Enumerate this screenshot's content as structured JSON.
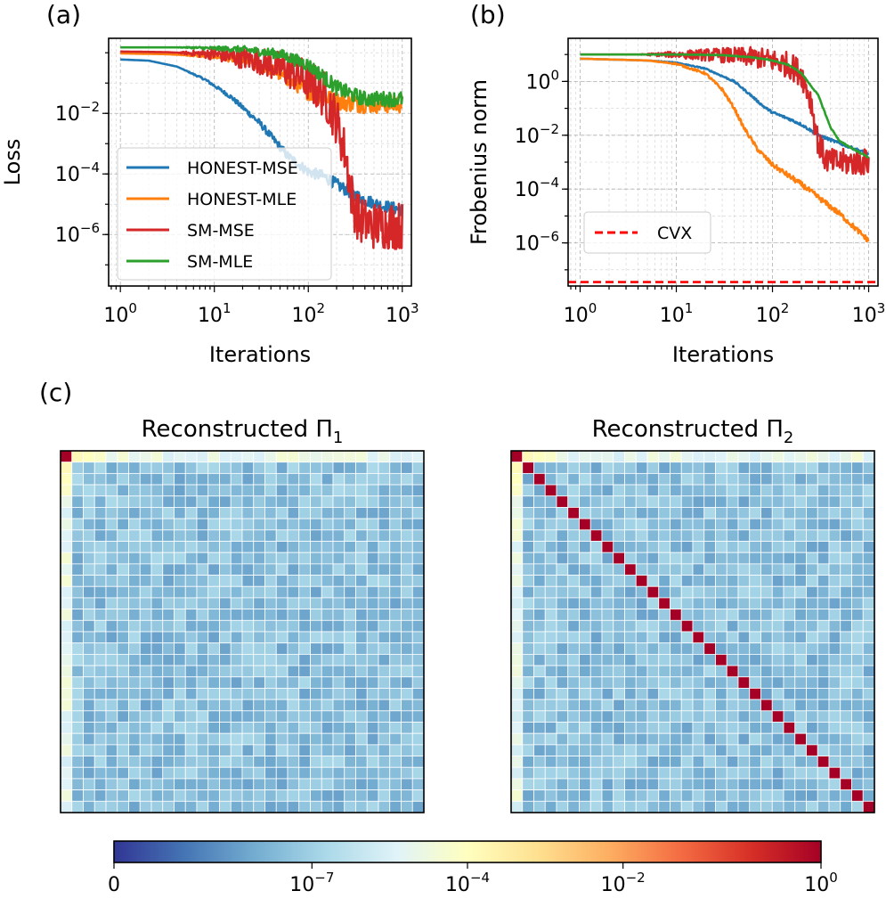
{
  "panel_labels": {
    "a": "(a)",
    "b": "(b)",
    "c": "(c)"
  },
  "chart_data": [
    {
      "id": "a",
      "type": "line",
      "xscale": "log",
      "yscale": "log",
      "xlabel": "Iterations",
      "ylabel": "Loss",
      "xlim": [
        0.75,
        1250
      ],
      "ylim": [
        2e-08,
        3
      ],
      "xticks": [
        {
          "base": "10",
          "exp": "0",
          "value": 1
        },
        {
          "base": "10",
          "exp": "1",
          "value": 10
        },
        {
          "base": "10",
          "exp": "2",
          "value": 100
        },
        {
          "base": "10",
          "exp": "3",
          "value": 1000
        }
      ],
      "yticks": [
        {
          "base": "10",
          "exp": "−2",
          "value": 0.01
        },
        {
          "base": "10",
          "exp": "−4",
          "value": 0.0001
        },
        {
          "base": "10",
          "exp": "−6",
          "value": 1e-06
        }
      ],
      "grid": true,
      "legend": "lower-left",
      "series": [
        {
          "name": "HONEST-MSE",
          "color": "#1f77b4",
          "x": [
            1,
            2,
            4,
            8,
            15,
            30,
            60,
            100,
            150,
            200,
            300,
            400,
            600,
            1000
          ],
          "y": [
            0.6,
            0.55,
            0.35,
            0.13,
            0.035,
            0.005,
            0.0004,
            0.00012,
            8e-05,
            4.5e-05,
            2.2e-05,
            1.4e-05,
            9e-06,
            6.5e-06
          ],
          "noise": 0.2
        },
        {
          "name": "HONEST-MLE",
          "color": "#ff7f0e",
          "x": [
            1,
            3,
            10,
            20,
            40,
            70,
            100,
            200,
            400,
            1000
          ],
          "y": [
            0.95,
            0.9,
            0.75,
            0.55,
            0.28,
            0.1,
            0.05,
            0.025,
            0.02,
            0.02
          ],
          "noise": 0.3
        },
        {
          "name": "SM-MSE",
          "color": "#d62728",
          "x": [
            1,
            3,
            10,
            30,
            70,
            100,
            150,
            200,
            250,
            300,
            350,
            500,
            1000
          ],
          "y": [
            1.1,
            1.05,
            0.9,
            0.55,
            0.22,
            0.12,
            0.04,
            0.006,
            0.0004,
            1e-05,
            3e-06,
            2e-06,
            2e-06
          ],
          "noise": 0.8
        },
        {
          "name": "SM-MLE",
          "color": "#2ca02c",
          "x": [
            1,
            5,
            20,
            50,
            100,
            150,
            200,
            300,
            400,
            1000
          ],
          "y": [
            1.5,
            1.5,
            1.3,
            0.9,
            0.4,
            0.15,
            0.07,
            0.04,
            0.03,
            0.03
          ],
          "noise": 0.25
        }
      ]
    },
    {
      "id": "b",
      "type": "line",
      "xscale": "log",
      "yscale": "log",
      "xlabel": "Iterations",
      "ylabel": "Frobenius norm",
      "xlim": [
        0.75,
        1250
      ],
      "ylim": [
        2.5e-08,
        40
      ],
      "xticks": [
        {
          "base": "10",
          "exp": "0",
          "value": 1
        },
        {
          "base": "10",
          "exp": "1",
          "value": 10
        },
        {
          "base": "10",
          "exp": "2",
          "value": 100
        },
        {
          "base": "10",
          "exp": "3",
          "value": 1000
        }
      ],
      "yticks": [
        {
          "base": "10",
          "exp": "0",
          "value": 1
        },
        {
          "base": "10",
          "exp": "−2",
          "value": 0.01
        },
        {
          "base": "10",
          "exp": "−4",
          "value": 0.0001
        },
        {
          "base": "10",
          "exp": "−6",
          "value": 1e-06
        }
      ],
      "grid": true,
      "legend": "lower-left",
      "series": [
        {
          "name": "",
          "color": "#1f77b4",
          "x": [
            1,
            5,
            10,
            20,
            40,
            60,
            80,
            100,
            150,
            200,
            300,
            500,
            1000
          ],
          "y": [
            7,
            6,
            5,
            3,
            1,
            0.3,
            0.12,
            0.07,
            0.04,
            0.025,
            0.01,
            0.005,
            0.002
          ],
          "noise": 0.05
        },
        {
          "name": "",
          "color": "#ff7f0e",
          "x": [
            1,
            5,
            10,
            20,
            30,
            40,
            50,
            70,
            100,
            200,
            500,
            1000
          ],
          "y": [
            7,
            6,
            4.5,
            2,
            0.5,
            0.1,
            0.02,
            0.003,
            0.0008,
            0.00015,
            1.2e-05,
            1.2e-06
          ],
          "noise": 0.1
        },
        {
          "name": "",
          "color": "#d62728",
          "x": [
            1,
            10,
            30,
            60,
            100,
            150,
            200,
            250,
            300,
            350,
            400,
            500,
            1000
          ],
          "y": [
            10,
            10,
            9.5,
            8,
            6,
            4,
            2,
            0.2,
            0.005,
            0.0015,
            0.001,
            0.001,
            0.001
          ],
          "noise": 0.5
        },
        {
          "name": "",
          "color": "#2ca02c",
          "x": [
            1,
            10,
            30,
            60,
            100,
            150,
            200,
            300,
            400,
            500,
            700,
            1000
          ],
          "y": [
            10,
            10,
            9.5,
            8,
            6,
            4,
            2,
            0.3,
            0.02,
            0.006,
            0.003,
            0.0015
          ],
          "noise": 0.02
        },
        {
          "name": "CVX",
          "color": "#ff0000",
          "style": "dashed",
          "x": [
            0.75,
            1250
          ],
          "y": [
            3.5e-08,
            3.5e-08
          ],
          "noise": 0
        }
      ]
    },
    {
      "id": "c1",
      "type": "heatmap",
      "title": {
        "prefix": "Reconstructed Π",
        "sub": "1"
      },
      "size": 32,
      "description": "off-diagonal entries ~1e-7; row 0 and column 0 larger (~1e-4 to 1e-5); entry (0,0) = 1"
    },
    {
      "id": "c2",
      "type": "heatmap",
      "title": {
        "prefix": "Reconstructed Π",
        "sub": "2"
      },
      "size": 32,
      "description": "off-diagonal entries ~1e-7; diagonal entries = 1; row 0 and column 0 larger"
    }
  ],
  "colorbar": {
    "ticks": [
      {
        "text": "0"
      },
      {
        "base": "10",
        "exp": "−7"
      },
      {
        "base": "10",
        "exp": "−4"
      },
      {
        "base": "10",
        "exp": "−2"
      },
      {
        "base": "10",
        "exp": "0"
      }
    ],
    "stops": [
      "#313695",
      "#4575b4",
      "#74add1",
      "#abd9e9",
      "#e0f3f8",
      "#ffffbf",
      "#fee090",
      "#fdae61",
      "#f46d43",
      "#d73027",
      "#a50026"
    ]
  }
}
